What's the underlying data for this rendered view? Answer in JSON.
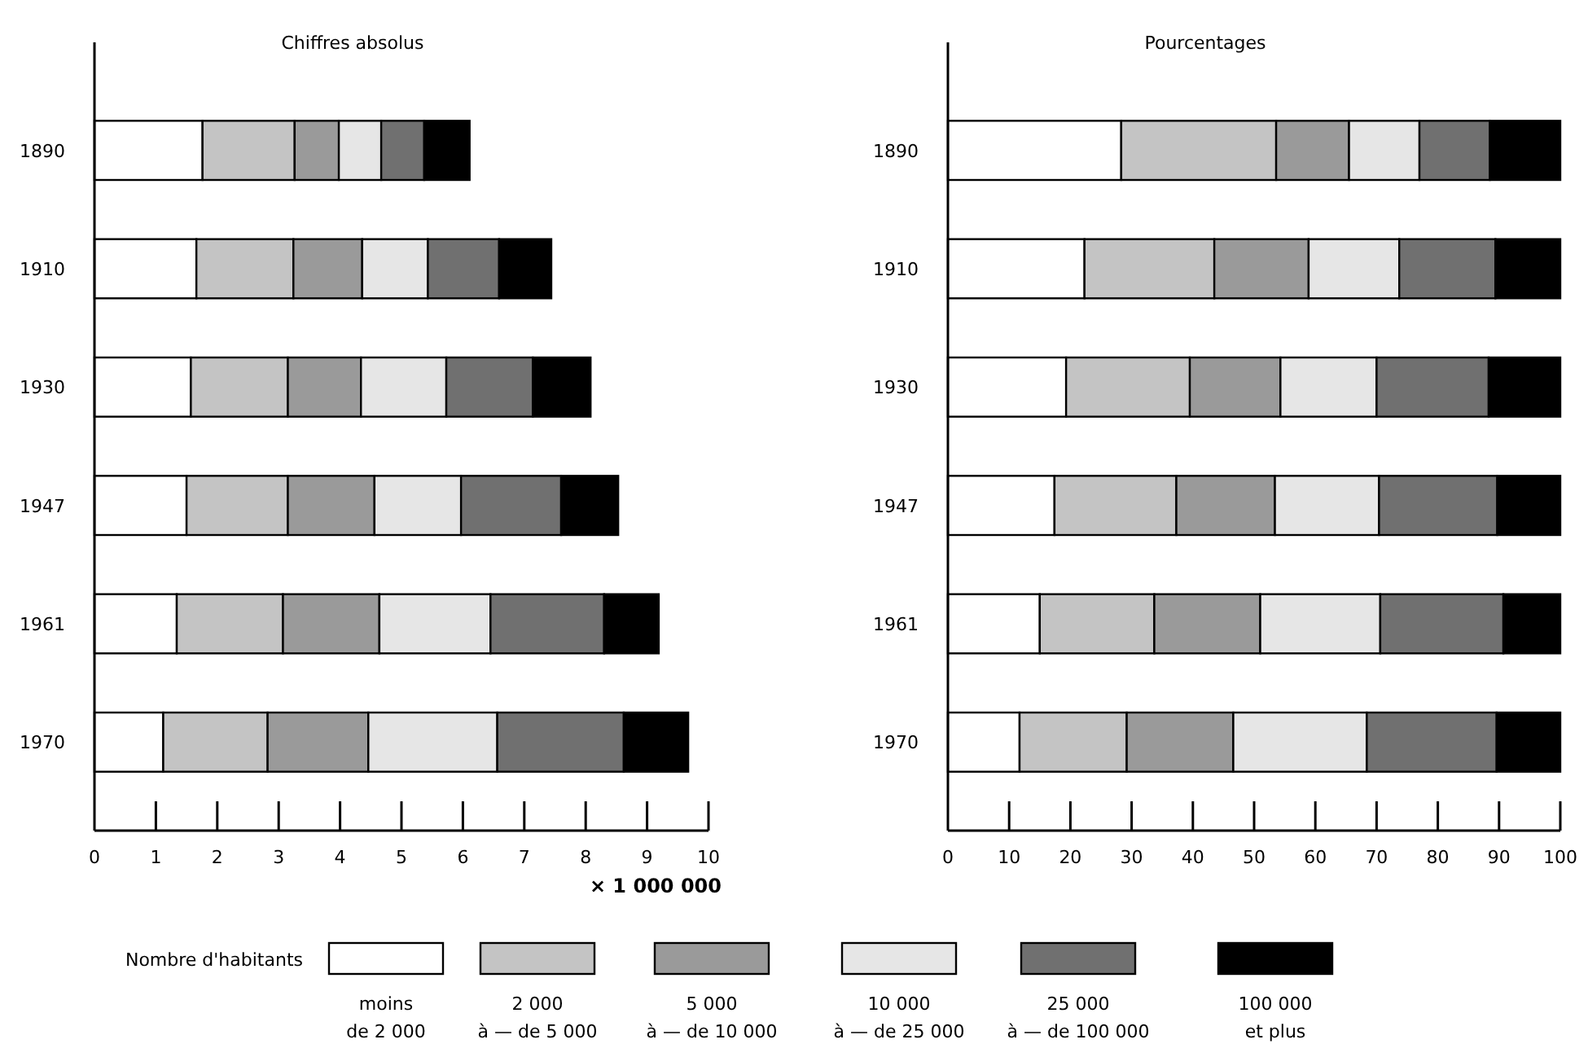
{
  "chart_data": [
    {
      "type": "bar",
      "title": "Chiffres absolus",
      "xlabel": "× 1 000 000",
      "orientation": "horizontal",
      "stacked": true,
      "categories": [
        "1890",
        "1910",
        "1930",
        "1947",
        "1961",
        "1970"
      ],
      "xlim": [
        0,
        10
      ],
      "xticks": [
        0,
        1,
        2,
        3,
        4,
        5,
        6,
        7,
        8,
        9,
        10
      ],
      "grid": false,
      "legend": "bottom",
      "legend_title": "Nombre d'habitants",
      "series": [
        {
          "name": "moins\nde 2 000",
          "color": "#ffffff",
          "values": [
            1.76,
            1.66,
            1.57,
            1.5,
            1.34,
            1.12
          ]
        },
        {
          "name": "2 000\nà — de 5 000",
          "color": "#c4c4c4",
          "values": [
            1.5,
            1.58,
            1.58,
            1.65,
            1.73,
            1.7
          ]
        },
        {
          "name": "5 000\nà — de 10 000",
          "color": "#9a9a9a",
          "values": [
            0.72,
            1.12,
            1.19,
            1.41,
            1.57,
            1.64
          ]
        },
        {
          "name": "10 000\nà — de 25 000",
          "color": "#e6e6e6",
          "values": [
            0.69,
            1.07,
            1.39,
            1.41,
            1.81,
            2.1
          ]
        },
        {
          "name": "25 000\nà — de 100 000",
          "color": "#707070",
          "values": [
            0.7,
            1.16,
            1.41,
            1.63,
            1.85,
            2.06
          ]
        },
        {
          "name": "100 000\net plus",
          "color": "#000000",
          "values": [
            0.74,
            0.85,
            0.94,
            0.93,
            0.89,
            1.05
          ]
        }
      ]
    },
    {
      "type": "bar",
      "title": "Pourcentages",
      "orientation": "horizontal",
      "stacked": true,
      "categories": [
        "1890",
        "1910",
        "1930",
        "1947",
        "1961",
        "1970"
      ],
      "xlim": [
        0,
        100
      ],
      "xticks": [
        0,
        10,
        20,
        30,
        40,
        50,
        60,
        70,
        80,
        90,
        100
      ],
      "grid": false,
      "series": [
        {
          "color": "#ffffff",
          "values": [
            28.3,
            22.3,
            19.3,
            17.4,
            15.0,
            11.7
          ]
        },
        {
          "color": "#c4c4c4",
          "values": [
            25.3,
            21.2,
            20.2,
            19.9,
            18.7,
            17.5
          ]
        },
        {
          "color": "#9a9a9a",
          "values": [
            11.9,
            15.4,
            14.8,
            16.1,
            17.3,
            17.4
          ]
        },
        {
          "color": "#e6e6e6",
          "values": [
            11.5,
            14.8,
            15.7,
            17.0,
            19.6,
            21.8
          ]
        },
        {
          "color": "#707070",
          "values": [
            11.5,
            15.7,
            18.3,
            19.3,
            20.1,
            21.2
          ]
        },
        {
          "color": "#000000",
          "values": [
            11.5,
            10.6,
            11.7,
            10.3,
            9.3,
            10.4
          ]
        }
      ]
    }
  ]
}
